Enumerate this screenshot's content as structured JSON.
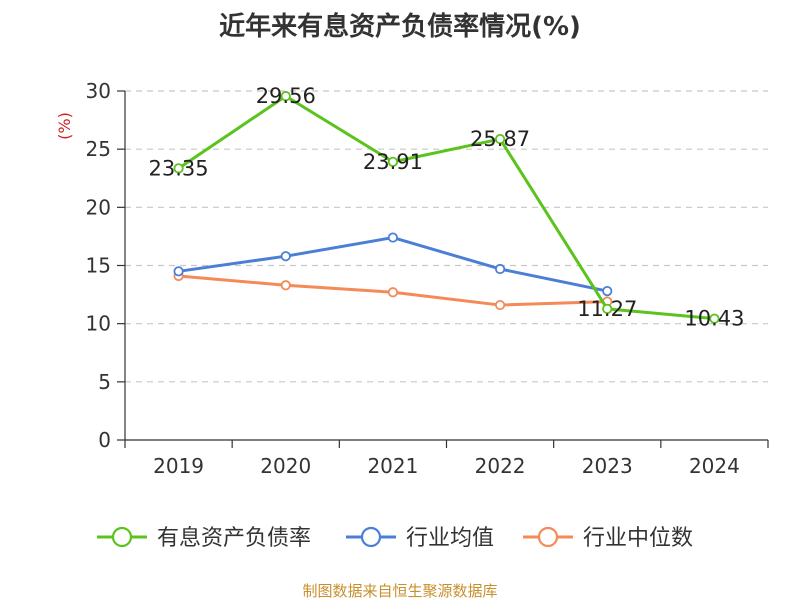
{
  "chart_data": {
    "type": "line",
    "title": "近年来有息资产负债率情况(%)",
    "ylabel": "(%)",
    "categories": [
      "2019",
      "2020",
      "2021",
      "2022",
      "2023",
      "2024"
    ],
    "ylim": [
      0,
      30
    ],
    "yticks": [
      0,
      5,
      10,
      15,
      20,
      25,
      30
    ],
    "grid": true,
    "legend_position": "bottom",
    "series": [
      {
        "name": "有息资产负债率",
        "color": "#5ac31c",
        "values": [
          23.35,
          29.56,
          23.91,
          25.87,
          11.27,
          10.43
        ],
        "labels": [
          "23.35",
          "29.56",
          "23.91",
          "25.87",
          "11.27",
          "10.43"
        ]
      },
      {
        "name": "行业均值",
        "color": "#4b7fd6",
        "values": [
          14.5,
          15.8,
          17.4,
          14.7,
          12.8,
          null
        ]
      },
      {
        "name": "行业中位数",
        "color": "#f38a58",
        "values": [
          14.1,
          13.3,
          12.7,
          11.6,
          11.9,
          null
        ]
      }
    ],
    "source": "制图数据来自恒生聚源数据库"
  }
}
